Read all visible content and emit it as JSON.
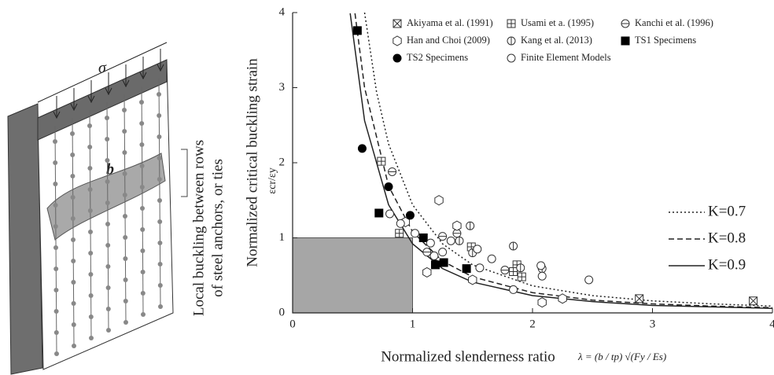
{
  "diagram": {
    "stress_label": "σ",
    "width_label": "b",
    "annotation": [
      "Local buckling between rows",
      "of steel anchors, or ties"
    ]
  },
  "chart_data": {
    "type": "scatter",
    "ylabel": "Normalized critical buckling strain",
    "ylabel_symbol": "εcr/εy",
    "xlabel": "Normalized slenderness ratio",
    "xlabel_formula": "λ = (b / tp) √(Fy / Es)",
    "xlim": [
      0,
      4
    ],
    "ylim": [
      0,
      4
    ],
    "xticks": [
      0,
      1,
      2,
      3,
      4
    ],
    "yticks": [
      0,
      1,
      2,
      3,
      4
    ],
    "grid": false,
    "series": [
      {
        "name": "Akiyama et al. (1991)",
        "marker": "crosssquare",
        "color": "#333333",
        "x": [
          2.89,
          3.84
        ],
        "values": [
          0.19,
          0.16
        ]
      },
      {
        "name": "Usami et a. (1995)",
        "marker": "plussquare",
        "color": "#333333",
        "x": [
          0.74,
          1.49,
          1.87,
          1.84,
          1.91,
          0.89
        ],
        "values": [
          2.02,
          0.88,
          0.64,
          0.55,
          0.48,
          1.06
        ]
      },
      {
        "name": "Kanchi et al. (1996)",
        "marker": "minuscircle",
        "color": "#333333",
        "x": [
          0.83,
          1.25,
          1.77,
          1.37,
          1.12
        ],
        "values": [
          1.88,
          1.02,
          0.57,
          1.06,
          0.81
        ]
      },
      {
        "name": "Han and Choi (2009)",
        "marker": "hexagon",
        "color": "#333333",
        "x": [
          1.22,
          1.37,
          1.12,
          2.08,
          2.25,
          1.5,
          0.94
        ],
        "values": [
          1.5,
          1.16,
          0.54,
          0.14,
          0.19,
          0.44,
          1.21
        ]
      },
      {
        "name": "Kang et al. (2013)",
        "marker": "vcircle",
        "color": "#333333",
        "x": [
          1.48,
          1.84,
          1.39,
          1.5,
          1.9,
          2.08
        ],
        "values": [
          1.16,
          0.89,
          0.96,
          0.8,
          0.6,
          0.59
        ]
      },
      {
        "name": "TS1 Specimens",
        "marker": "filledsquare",
        "color": "#000000",
        "x": [
          0.54,
          0.72,
          1.09,
          1.19,
          1.26,
          1.45
        ],
        "values": [
          3.76,
          1.33,
          1.0,
          0.64,
          0.67,
          0.59
        ]
      },
      {
        "name": "TS2 Specimens",
        "marker": "filledcircle",
        "color": "#000000",
        "x": [
          0.58,
          0.8,
          0.98,
          1.19
        ],
        "values": [
          2.19,
          1.68,
          1.3,
          0.65
        ]
      },
      {
        "name": "Finite Element Models",
        "marker": "circle",
        "color": "#333333",
        "x": [
          1.02,
          0.81,
          0.9,
          1.15,
          1.25,
          1.32,
          1.54,
          1.66,
          1.84,
          2.07,
          2.47,
          2.08,
          1.18,
          1.56
        ],
        "values": [
          1.06,
          1.32,
          1.19,
          0.93,
          0.81,
          0.96,
          0.85,
          0.72,
          0.31,
          0.63,
          0.44,
          0.49,
          0.76,
          0.6
        ]
      }
    ],
    "curves": [
      {
        "name": "K=0.7",
        "dash": "dotted",
        "color": "#222222",
        "x": [
          0.6,
          0.7,
          0.8,
          1,
          1.25,
          1.5,
          2,
          2.5,
          3,
          3.5,
          4
        ],
        "values": [
          4.0,
          2.94,
          2.25,
          1.44,
          0.92,
          0.64,
          0.36,
          0.23,
          0.16,
          0.12,
          0.09
        ]
      },
      {
        "name": "K=0.8",
        "dash": "dashed",
        "color": "#222222",
        "x": [
          0.52,
          0.6,
          0.8,
          1,
          1.25,
          1.5,
          2,
          2.5,
          3,
          3.5,
          4
        ],
        "values": [
          3.99,
          3.0,
          1.69,
          1.08,
          0.69,
          0.48,
          0.27,
          0.17,
          0.12,
          0.09,
          0.07
        ]
      },
      {
        "name": "K=0.9",
        "dash": "solid",
        "color": "#222222",
        "x": [
          0.48,
          0.6,
          0.8,
          1,
          1.25,
          1.5,
          2,
          2.5,
          3,
          3.5,
          4
        ],
        "values": [
          3.99,
          2.56,
          1.44,
          0.92,
          0.59,
          0.41,
          0.23,
          0.15,
          0.1,
          0.08,
          0.06
        ]
      }
    ]
  }
}
